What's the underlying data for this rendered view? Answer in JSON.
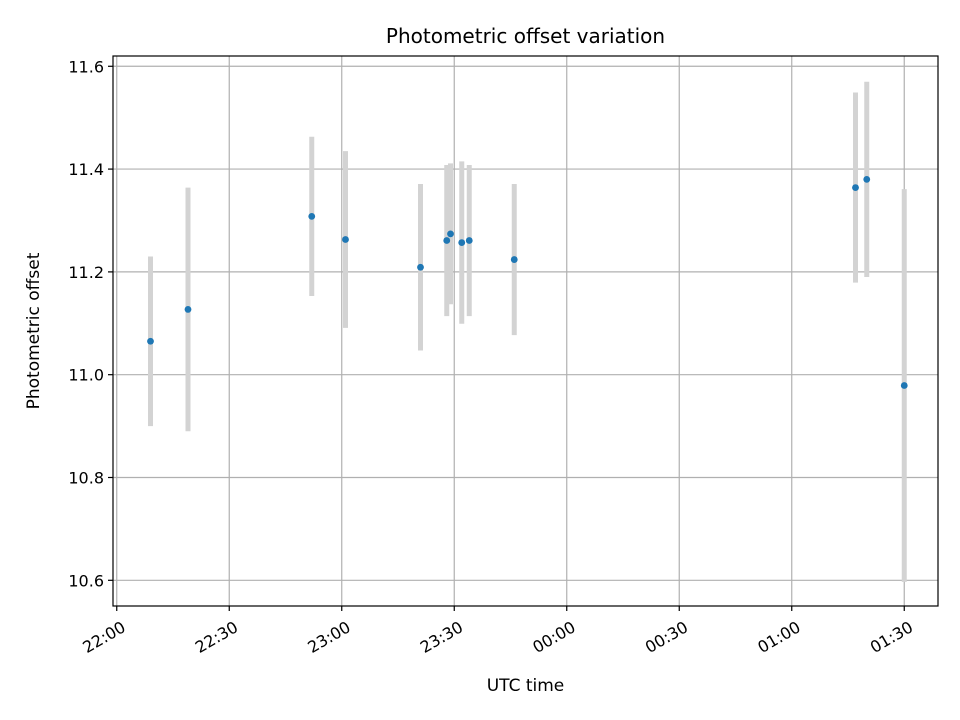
{
  "chart_data": {
    "type": "scatter",
    "title": "Photometric offset variation",
    "xlabel": "UTC time",
    "ylabel": "Photometric offset",
    "x_axis_kind": "time",
    "xlim": [
      "21:59",
      "01:39"
    ],
    "ylim": [
      10.55,
      11.62
    ],
    "yticks": [
      10.6,
      10.8,
      11.0,
      11.2,
      11.4,
      11.6
    ],
    "xticks": [
      "22:00",
      "22:30",
      "23:00",
      "23:30",
      "00:00",
      "00:30",
      "01:00",
      "01:30"
    ],
    "grid": true,
    "colors": {
      "point": "#1f77b4",
      "errorbar": "#d3d3d3",
      "grid": "#b0b0b0"
    },
    "points": [
      {
        "x": "22:09",
        "y": 11.065,
        "err": 0.165
      },
      {
        "x": "22:19",
        "y": 11.127,
        "err": 0.237
      },
      {
        "x": "22:52",
        "y": 11.308,
        "err": 0.155
      },
      {
        "x": "23:01",
        "y": 11.263,
        "err": 0.172
      },
      {
        "x": "23:21",
        "y": 11.209,
        "err": 0.162
      },
      {
        "x": "23:28",
        "y": 11.261,
        "err": 0.147
      },
      {
        "x": "23:29",
        "y": 11.274,
        "err": 0.137
      },
      {
        "x": "23:32",
        "y": 11.257,
        "err": 0.158
      },
      {
        "x": "23:34",
        "y": 11.261,
        "err": 0.147
      },
      {
        "x": "23:46",
        "y": 11.224,
        "err": 0.147
      },
      {
        "x": "01:17",
        "y": 11.364,
        "err": 0.185
      },
      {
        "x": "01:20",
        "y": 11.38,
        "err": 0.19
      },
      {
        "x": "01:30",
        "y": 10.979,
        "err": 0.382
      }
    ]
  }
}
